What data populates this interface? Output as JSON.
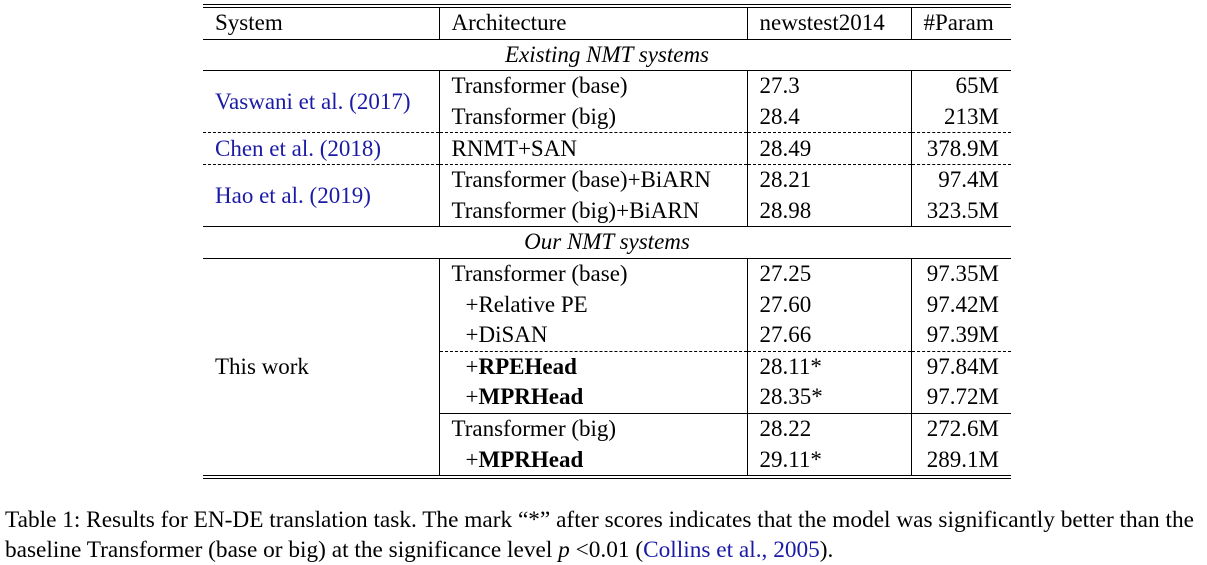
{
  "table": {
    "headers": [
      "System",
      "Architecture",
      "newstest2014",
      "#Param"
    ],
    "section_existing": "Existing NMT systems",
    "section_ours": "Our NMT systems",
    "existing": [
      {
        "system_text": "Vaswani et al.",
        "system_year": "2017",
        "rows": [
          {
            "arch": "Transformer (base)",
            "score": "27.3",
            "param": "65M"
          },
          {
            "arch": "Transformer (big)",
            "score": "28.4",
            "param": "213M"
          }
        ]
      },
      {
        "system_text": "Chen et al.",
        "system_year": "2018",
        "rows": [
          {
            "arch": "RNMT+SAN",
            "score": "28.49",
            "param": "378.9M"
          }
        ]
      },
      {
        "system_text": "Hao et al.",
        "system_year": "2019",
        "rows": [
          {
            "arch": "Transformer (base)+BiARN",
            "score": "28.21",
            "param": "97.4M"
          },
          {
            "arch": "Transformer (big)+BiARN",
            "score": "28.98",
            "param": "323.5M"
          }
        ]
      }
    ],
    "ours_system": "This work",
    "ours": [
      {
        "arch": "Transformer (base)",
        "score": "27.25",
        "param": "97.35M"
      },
      {
        "arch": "+Relative PE",
        "score": "27.60",
        "param": "97.42M"
      },
      {
        "arch": "+DiSAN",
        "score": "27.66",
        "param": "97.39M"
      },
      {
        "arch_prefix": "+",
        "arch_bold": "RPEHead",
        "score": "28.11*",
        "param": "97.84M"
      },
      {
        "arch_prefix": "+",
        "arch_bold": "MPRHead",
        "score": "28.35*",
        "param": "97.72M"
      },
      {
        "arch": "Transformer (big)",
        "score": "28.22",
        "param": "272.6M"
      },
      {
        "arch_prefix": "+",
        "arch_bold": "MPRHead",
        "score": "29.11*",
        "param": "289.1M"
      }
    ]
  },
  "caption": {
    "part1": "Table 1: Results for EN-DE translation task. The mark “*” after scores indicates that the model was significantly better than the baseline Transformer (base or big) at the significance level ",
    "var": "p",
    "part2": " <0.01 (",
    "cite_text": "Collins et al.",
    "cite_sep": ", ",
    "cite_year": "2005",
    "part3": ")."
  }
}
